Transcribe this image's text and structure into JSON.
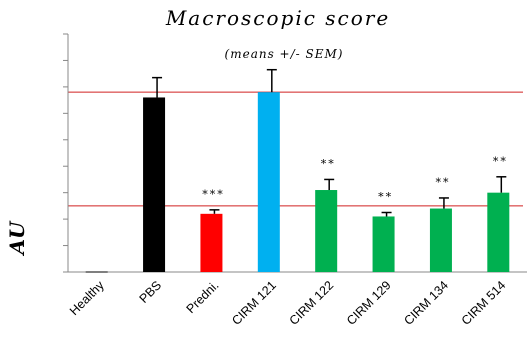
{
  "chart_data": {
    "type": "bar",
    "title": "Macroscopic score",
    "subtitle": "(means +/- SEM)",
    "ylabel": "AU",
    "categories": [
      "Healthy",
      "PBS",
      "Predni.",
      "CIRM 121",
      "CIRM 122",
      "CIRM 129",
      "CIRM 134",
      "CIRM 514"
    ],
    "values": [
      0,
      6.6,
      2.2,
      6.8,
      3.1,
      2.1,
      2.4,
      3.0
    ],
    "errors": [
      0,
      0.75,
      0.15,
      0.85,
      0.4,
      0.15,
      0.4,
      0.6
    ],
    "significance": [
      "",
      "",
      "***",
      "",
      "**",
      "**",
      "**",
      "**"
    ],
    "colors": [
      "#000000",
      "#000000",
      "#ff0000",
      "#00b0f0",
      "#00b050",
      "#00b050",
      "#00b050",
      "#00b050"
    ],
    "reference_lines": [
      {
        "value": 6.8,
        "color": "#d02020"
      },
      {
        "value": 2.5,
        "color": "#d02020"
      }
    ],
    "ylim": [
      0,
      9
    ],
    "ytick_step": 1,
    "grid": false,
    "legend": "none"
  }
}
